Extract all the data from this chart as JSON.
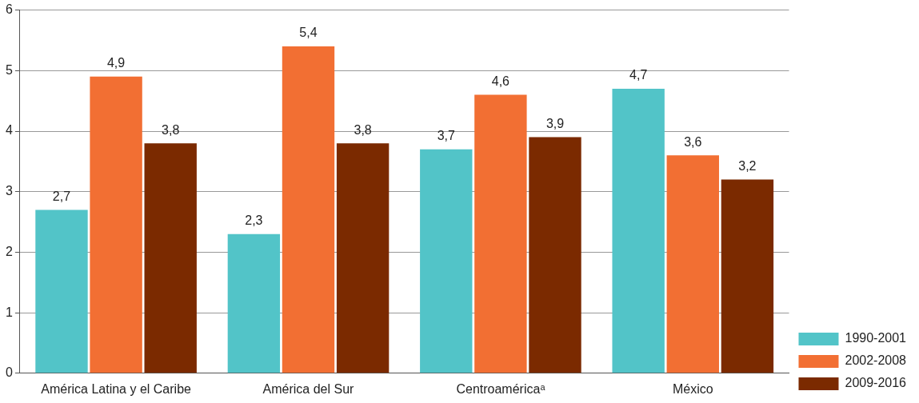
{
  "chart_data": {
    "type": "bar",
    "categories": [
      "América Latina y el Caribe",
      "América del Sur",
      "Centroaméricaᵃ",
      "México"
    ],
    "series": [
      {
        "name": "1990-2001",
        "color": "#52c4c8",
        "values": [
          2.7,
          2.3,
          3.7,
          4.7
        ],
        "value_labels": [
          "2,7",
          "2,3",
          "3,7",
          "4,7"
        ]
      },
      {
        "name": "2002-2008",
        "color": "#f26f33",
        "values": [
          4.9,
          5.4,
          4.6,
          3.6
        ],
        "value_labels": [
          "4,9",
          "5,4",
          "4,6",
          "3,6"
        ]
      },
      {
        "name": "2009-2016",
        "color": "#7b2a00",
        "values": [
          3.8,
          3.8,
          3.9,
          3.2
        ],
        "value_labels": [
          "3,8",
          "3,8",
          "3,9",
          "3,2"
        ]
      }
    ],
    "ylim": [
      0,
      6
    ],
    "yticks": [
      0,
      1,
      2,
      3,
      4,
      5,
      6
    ],
    "grid": "y",
    "legend": "bottom right"
  }
}
